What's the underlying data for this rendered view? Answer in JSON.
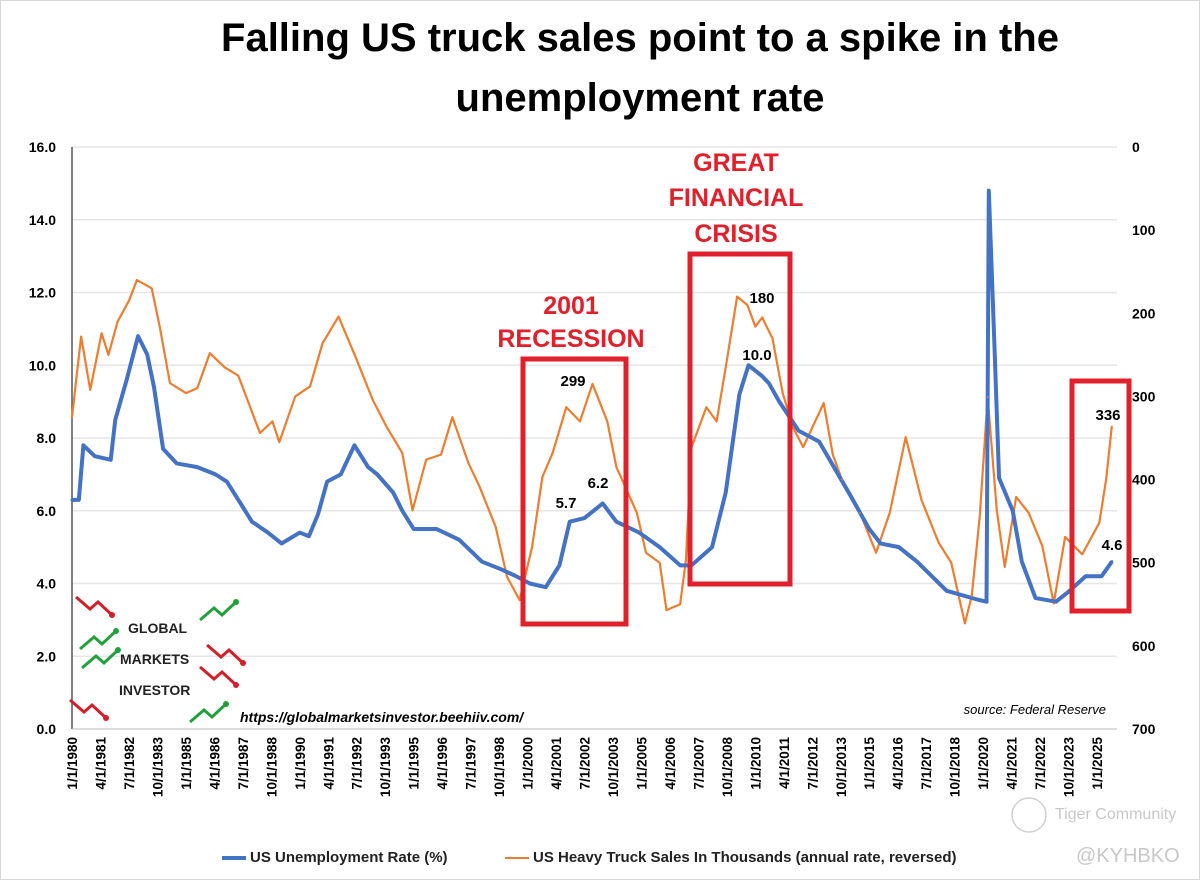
{
  "title_line1": "Falling US truck sales point to a spike in the",
  "title_line2": "unemployment rate",
  "legend": {
    "unemployment": "US Unemployment Rate (%)",
    "trucks": "US Heavy Truck Sales In Thousands (annual rate, reversed)"
  },
  "source": "source: Federal Reserve",
  "url": "https://globalmarketsinvestor.beehiiv.com/",
  "logo": {
    "line1": "GLOBAL",
    "line2": "MARKETS",
    "line3": "INVESTOR"
  },
  "watermark": {
    "brand": "Tiger Community",
    "handle": "@KYHBKO"
  },
  "annotations": {
    "recession_2001": [
      "2001",
      "RECESSION"
    ],
    "gfc": [
      "GREAT",
      "FINANCIAL",
      "CRISIS"
    ],
    "data_labels": {
      "trucks_2002": "299",
      "unemp_2001": "5.7",
      "unemp_2003": "6.2",
      "trucks_2009": "180",
      "unemp_2009": "10.0",
      "trucks_2025": "336",
      "unemp_2025": "4.6"
    }
  },
  "colors": {
    "unemployment": "#4472c4",
    "trucks": "#ed7d31",
    "highlight": "#e0202a",
    "grid": "#e6e6e6"
  },
  "chart_data": {
    "type": "line",
    "title": "Falling US truck sales point to a spike in the unemployment rate",
    "xlabel": "",
    "ylabel_left": "US Unemployment Rate (%)",
    "ylabel_right": "US Heavy Truck Sales In Thousands (annual rate, reversed)",
    "xlim": [
      1980,
      2025.8
    ],
    "ylim_left": [
      0,
      16
    ],
    "ylim_right": [
      0,
      700
    ],
    "right_axis_reversed": true,
    "y_ticks_left": [
      "0.0",
      "2.0",
      "4.0",
      "6.0",
      "8.0",
      "10.0",
      "12.0",
      "14.0",
      "16.0"
    ],
    "y_ticks_right": [
      "0",
      "100",
      "200",
      "300",
      "400",
      "500",
      "600",
      "700"
    ],
    "x_tick_labels": [
      "1/1/1980",
      "4/1/1981",
      "7/1/1982",
      "10/1/1983",
      "1/1/1985",
      "4/1/1986",
      "7/1/1987",
      "10/1/1988",
      "1/1/1990",
      "4/1/1991",
      "7/1/1992",
      "10/1/1993",
      "1/1/1995",
      "4/1/1996",
      "7/1/1997",
      "10/1/1998",
      "1/1/2000",
      "4/1/2001",
      "7/1/2002",
      "10/1/2003",
      "1/1/2005",
      "4/1/2006",
      "7/1/2007",
      "10/1/2008",
      "1/1/2010",
      "4/1/2011",
      "7/1/2012",
      "10/1/2013",
      "1/1/2015",
      "4/1/2016",
      "7/1/2017",
      "10/1/2018",
      "1/1/2020",
      "4/1/2021",
      "7/1/2022",
      "10/1/2023",
      "1/1/2025"
    ],
    "grid": true,
    "legend_position": "bottom",
    "series": [
      {
        "name": "US Unemployment Rate (%)",
        "axis": "left",
        "x": [
          1980.0,
          1980.3,
          1980.5,
          1981.0,
          1981.7,
          1981.9,
          1982.4,
          1982.9,
          1983.3,
          1983.6,
          1984.0,
          1984.6,
          1985.5,
          1986.3,
          1986.8,
          1987.4,
          1987.9,
          1988.6,
          1989.2,
          1990.0,
          1990.4,
          1990.8,
          1991.2,
          1991.8,
          1992.4,
          1993.0,
          1993.4,
          1994.1,
          1994.5,
          1995.0,
          1996.0,
          1997.0,
          1998.0,
          1998.8,
          1999.5,
          2000.1,
          2000.8,
          2001.4,
          2001.85,
          2002.5,
          2003.3,
          2003.9,
          2004.9,
          2005.8,
          2006.7,
          2007.2,
          2008.1,
          2008.7,
          2009.3,
          2009.7,
          2010.3,
          2010.6,
          2011.05,
          2011.9,
          2012.8,
          2014.1,
          2015.0,
          2015.5,
          2016.3,
          2017.1,
          2018.4,
          2019.8,
          2020.15,
          2020.25,
          2020.5,
          2020.7,
          2021.3,
          2021.7,
          2022.3,
          2023.2,
          2023.8,
          2024.5,
          2025.2,
          2025.65
        ],
        "values": [
          6.3,
          6.3,
          7.8,
          7.5,
          7.4,
          8.5,
          9.6,
          10.8,
          10.3,
          9.4,
          7.7,
          7.3,
          7.2,
          7.0,
          6.8,
          6.2,
          5.7,
          5.4,
          5.1,
          5.4,
          5.3,
          5.9,
          6.8,
          7.0,
          7.8,
          7.2,
          7.0,
          6.5,
          6.0,
          5.5,
          5.5,
          5.2,
          4.6,
          4.4,
          4.2,
          4.0,
          3.9,
          4.5,
          5.7,
          5.8,
          6.2,
          5.7,
          5.4,
          5.0,
          4.5,
          4.5,
          5.0,
          6.5,
          9.2,
          10.0,
          9.7,
          9.5,
          9.0,
          8.2,
          7.9,
          6.5,
          5.5,
          5.1,
          5.0,
          4.6,
          3.8,
          3.55,
          3.5,
          14.8,
          10.5,
          6.9,
          6.0,
          4.6,
          3.6,
          3.5,
          3.8,
          4.2,
          4.2,
          4.6
        ]
      },
      {
        "name": "US Heavy Truck Sales In Thousands (annual rate, reversed)",
        "axis": "right",
        "x": [
          1980.0,
          1980.4,
          1980.8,
          1981.3,
          1981.6,
          1982.0,
          1982.5,
          1982.85,
          1983.5,
          1983.85,
          1984.3,
          1985.0,
          1985.5,
          1986.05,
          1986.7,
          1987.3,
          1987.7,
          1988.25,
          1988.8,
          1989.1,
          1989.8,
          1990.45,
          1991.0,
          1991.2,
          1991.7,
          1992.5,
          1993.2,
          1993.8,
          1994.5,
          1994.95,
          1995.55,
          1996.2,
          1996.7,
          1997.4,
          1997.9,
          1998.6,
          1999.1,
          1999.65,
          2000.2,
          2000.65,
          2001.1,
          2001.7,
          2002.3,
          2002.85,
          2003.5,
          2003.9,
          2004.8,
          2005.2,
          2005.8,
          2006.1,
          2006.7,
          2006.95,
          2007.2,
          2007.85,
          2008.3,
          2008.7,
          2009.2,
          2009.65,
          2010.0,
          2010.3,
          2010.75,
          2011.2,
          2011.65,
          2012.1,
          2013.0,
          2013.4,
          2013.8,
          2014.6,
          2015.3,
          2015.9,
          2016.6,
          2017.3,
          2018.05,
          2018.6,
          2019.2,
          2019.5,
          2019.85,
          2020.2,
          2020.6,
          2020.95,
          2021.45,
          2022.0,
          2022.6,
          2023.1,
          2023.6,
          2024.35,
          2025.1,
          2025.4,
          2025.65
        ],
        "values": [
          325,
          228,
          292,
          224,
          250,
          210,
          185,
          160,
          170,
          216,
          284,
          296,
          290,
          248,
          265,
          275,
          304,
          344,
          330,
          355,
          300,
          288,
          236,
          227,
          204,
          256,
          304,
          336,
          368,
          437,
          376,
          370,
          325,
          380,
          409,
          457,
          517,
          545,
          481,
          397,
          368,
          313,
          330,
          285,
          330,
          385,
          440,
          488,
          500,
          557,
          550,
          497,
          361,
          313,
          330,
          265,
          180,
          190,
          216,
          205,
          230,
          296,
          337,
          361,
          308,
          370,
          400,
          440,
          488,
          440,
          349,
          425,
          476,
          500,
          573,
          540,
          445,
          301,
          437,
          505,
          421,
          440,
          480,
          549,
          469,
          490,
          452,
          400,
          336
        ]
      }
    ]
  }
}
